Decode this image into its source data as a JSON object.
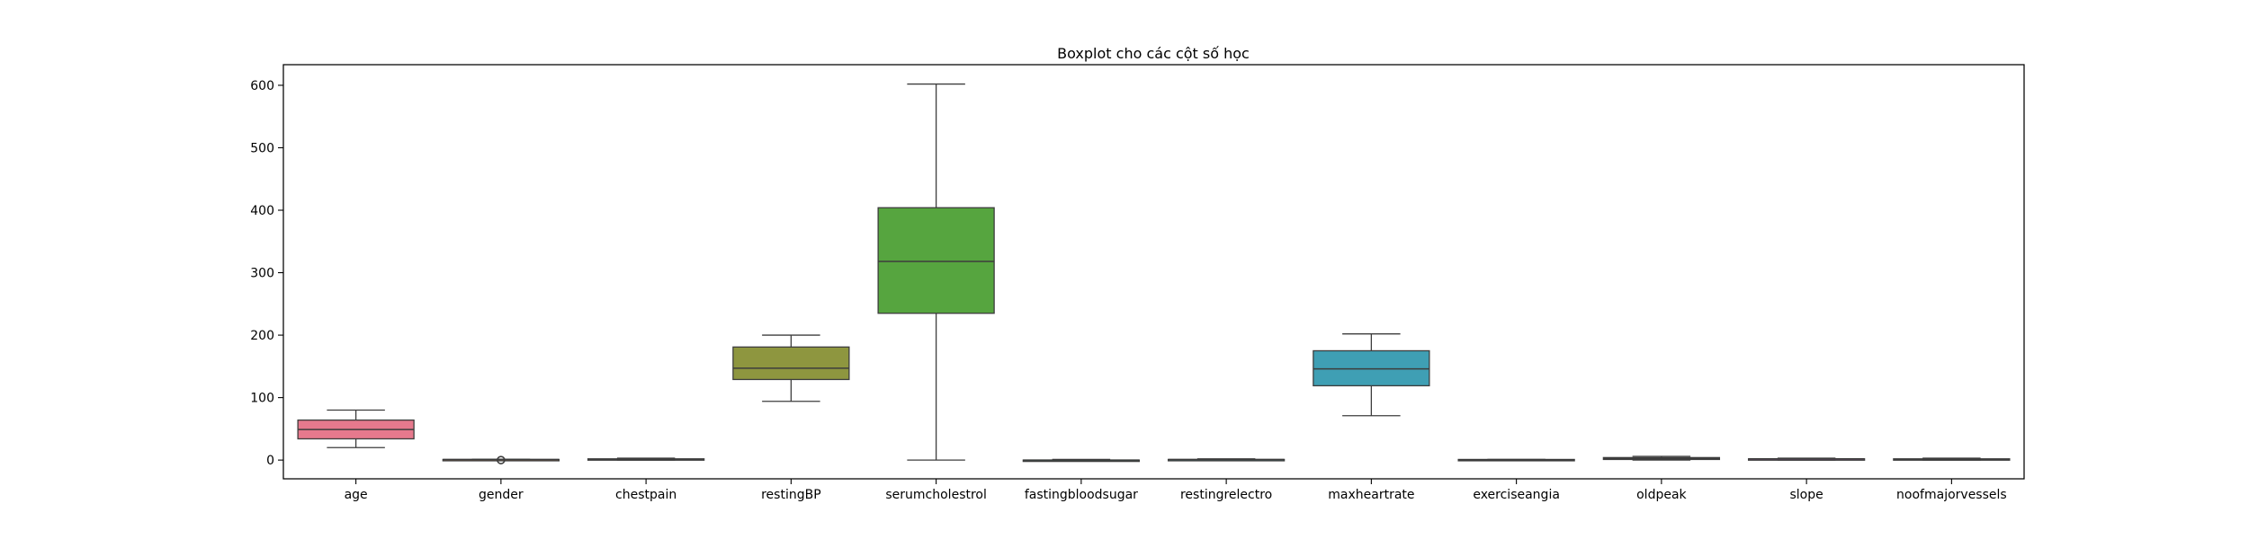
{
  "chart_data": {
    "type": "boxplot",
    "title": "Boxplot cho các cột số học",
    "xlabel": "",
    "ylabel": "",
    "ylim": [
      -30,
      633
    ],
    "yticks": [
      0,
      100,
      200,
      300,
      400,
      500,
      600
    ],
    "grid": false,
    "categories": [
      "age",
      "gender",
      "chestpain",
      "restingBP",
      "serumcholestrol",
      "fastingbloodsugar",
      "restingrelectro",
      "maxheartrate",
      "exerciseangia",
      "oldpeak",
      "slope",
      "noofmajorvessels"
    ],
    "series": [
      {
        "category": "age",
        "whisker_low": 20,
        "q1": 34,
        "median": 49,
        "q3": 64,
        "whisker_high": 80,
        "outliers": [],
        "color": "#e6798d"
      },
      {
        "category": "gender",
        "whisker_low": 1,
        "q1": 1,
        "median": 1,
        "q3": 1,
        "whisker_high": 1,
        "outliers": [
          0
        ],
        "color": "#dd8a52"
      },
      {
        "category": "chestpain",
        "whisker_low": 0,
        "q1": 0,
        "median": 1,
        "q3": 2,
        "whisker_high": 3,
        "outliers": [],
        "color": "#c69744"
      },
      {
        "category": "restingBP",
        "whisker_low": 94,
        "q1": 129,
        "median": 147,
        "q3": 181,
        "whisker_high": 200,
        "outliers": [],
        "color": "#8e963f"
      },
      {
        "category": "serumcholestrol",
        "whisker_low": 0,
        "q1": 235,
        "median": 318,
        "q3": 404,
        "whisker_high": 602,
        "outliers": [],
        "color": "#56a53f"
      },
      {
        "category": "fastingbloodsugar",
        "whisker_low": 0,
        "q1": 0,
        "median": 0,
        "q3": 0,
        "whisker_high": 1,
        "outliers": [],
        "color": "#44a681"
      },
      {
        "category": "restingrelectro",
        "whisker_low": 0,
        "q1": 0,
        "median": 1,
        "q3": 1,
        "whisker_high": 2,
        "outliers": [],
        "color": "#44a199"
      },
      {
        "category": "maxheartrate",
        "whisker_low": 71,
        "q1": 119,
        "median": 146,
        "q3": 175,
        "whisker_high": 202,
        "outliers": [],
        "color": "#3f9fb4"
      },
      {
        "category": "exerciseangia",
        "whisker_low": 0,
        "q1": 0,
        "median": 0,
        "q3": 1,
        "whisker_high": 1,
        "outliers": [],
        "color": "#5c9fdb"
      },
      {
        "category": "oldpeak",
        "whisker_low": 0,
        "q1": 1,
        "median": 2,
        "q3": 4,
        "whisker_high": 6,
        "outliers": [],
        "color": "#a18ee6"
      },
      {
        "category": "slope",
        "whisker_low": 0,
        "q1": 1,
        "median": 2,
        "q3": 2,
        "whisker_high": 3,
        "outliers": [],
        "color": "#d97ae0"
      },
      {
        "category": "noofmajorvessels",
        "whisker_low": 0,
        "q1": 0,
        "median": 1,
        "q3": 2,
        "whisker_high": 3,
        "outliers": [],
        "color": "#e579b6"
      }
    ]
  }
}
